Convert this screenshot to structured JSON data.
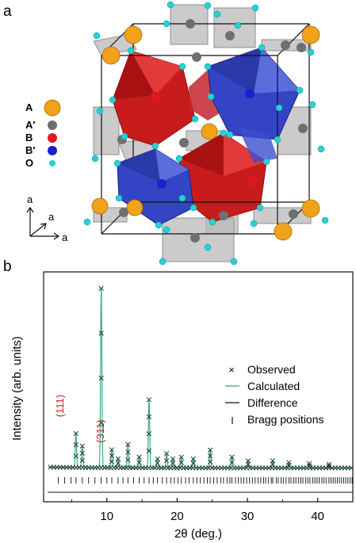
{
  "panel_a": {
    "label": "a",
    "legend": [
      {
        "key": "A",
        "color": "#f0a21a"
      },
      {
        "key": "A′",
        "color": "#6f6f6f"
      },
      {
        "key": "B",
        "color": "#e01a1a"
      },
      {
        "key": "B′",
        "color": "#1a22cc"
      },
      {
        "key": "O",
        "color": "#22d3d8"
      }
    ],
    "axes": [
      "a",
      "a",
      "a"
    ],
    "polyhedra_colors": {
      "B": "#d42222",
      "B_prime": "#3a4fd0",
      "A_prime": "#b7b7b7"
    }
  },
  "panel_b": {
    "label": "b",
    "peak_labels": [
      "(111)",
      "(311)"
    ],
    "peak_label_color": "#cc2222",
    "calc_color": "#25a58c"
  },
  "chart_data": {
    "type": "line",
    "xlabel": "2θ (deg.)",
    "ylabel": "Intensity (arb. units)",
    "xlim": [
      1,
      45
    ],
    "xticks": [
      10,
      20,
      30,
      40
    ],
    "legend_position": "right",
    "series": [
      {
        "name": "Observed",
        "style": "x-markers"
      },
      {
        "name": "Calculated",
        "style": "line",
        "color": "#25a58c"
      },
      {
        "name": "Difference",
        "style": "line",
        "color": "#111111"
      },
      {
        "name": "Bragg positions",
        "style": "ticks"
      }
    ],
    "peaks": [
      {
        "x": 5.6,
        "y": 0.19
      },
      {
        "x": 6.5,
        "y": 0.12
      },
      {
        "x": 9.2,
        "y": 1.0
      },
      {
        "x": 10.7,
        "y": 0.1
      },
      {
        "x": 11.6,
        "y": 0.05
      },
      {
        "x": 13.0,
        "y": 0.13
      },
      {
        "x": 14.6,
        "y": 0.06
      },
      {
        "x": 16.0,
        "y": 0.38
      },
      {
        "x": 17.2,
        "y": 0.05
      },
      {
        "x": 18.5,
        "y": 0.08
      },
      {
        "x": 19.4,
        "y": 0.05
      },
      {
        "x": 20.6,
        "y": 0.06
      },
      {
        "x": 22.3,
        "y": 0.05
      },
      {
        "x": 24.7,
        "y": 0.1
      },
      {
        "x": 27.8,
        "y": 0.06
      },
      {
        "x": 30.1,
        "y": 0.04
      },
      {
        "x": 33.6,
        "y": 0.04
      },
      {
        "x": 35.9,
        "y": 0.03
      },
      {
        "x": 38.8,
        "y": 0.025
      },
      {
        "x": 41.6,
        "y": 0.02
      }
    ],
    "bragg_positions": [
      3.1,
      4.0,
      4.9,
      5.6,
      6.5,
      7.4,
      8.3,
      9.2,
      10.0,
      10.7,
      11.6,
      12.3,
      13.0,
      13.8,
      14.6,
      15.3,
      16.0,
      16.6,
      17.2,
      17.9,
      18.5,
      19.1,
      19.6,
      20.1,
      20.6,
      21.2,
      21.7,
      22.3,
      22.8,
      23.3,
      23.8,
      24.3,
      24.7,
      25.2,
      25.7,
      26.2,
      26.6,
      27.1,
      27.5,
      27.8,
      28.3,
      28.7,
      29.1,
      29.5,
      29.9,
      30.3,
      30.7,
      31.1,
      31.5,
      31.9,
      32.3,
      32.6,
      33.0,
      33.4,
      33.6,
      34.1,
      34.4,
      34.8,
      35.1,
      35.5,
      35.9,
      36.2,
      36.6,
      36.9,
      37.3,
      37.6,
      37.9,
      38.3,
      38.6,
      38.9,
      39.3,
      39.6,
      39.9,
      40.2,
      40.6,
      40.9,
      41.2,
      41.6,
      41.9,
      42.2,
      42.5,
      42.8,
      43.1,
      43.4,
      43.7,
      44.0,
      44.3,
      44.6,
      44.9
    ]
  }
}
